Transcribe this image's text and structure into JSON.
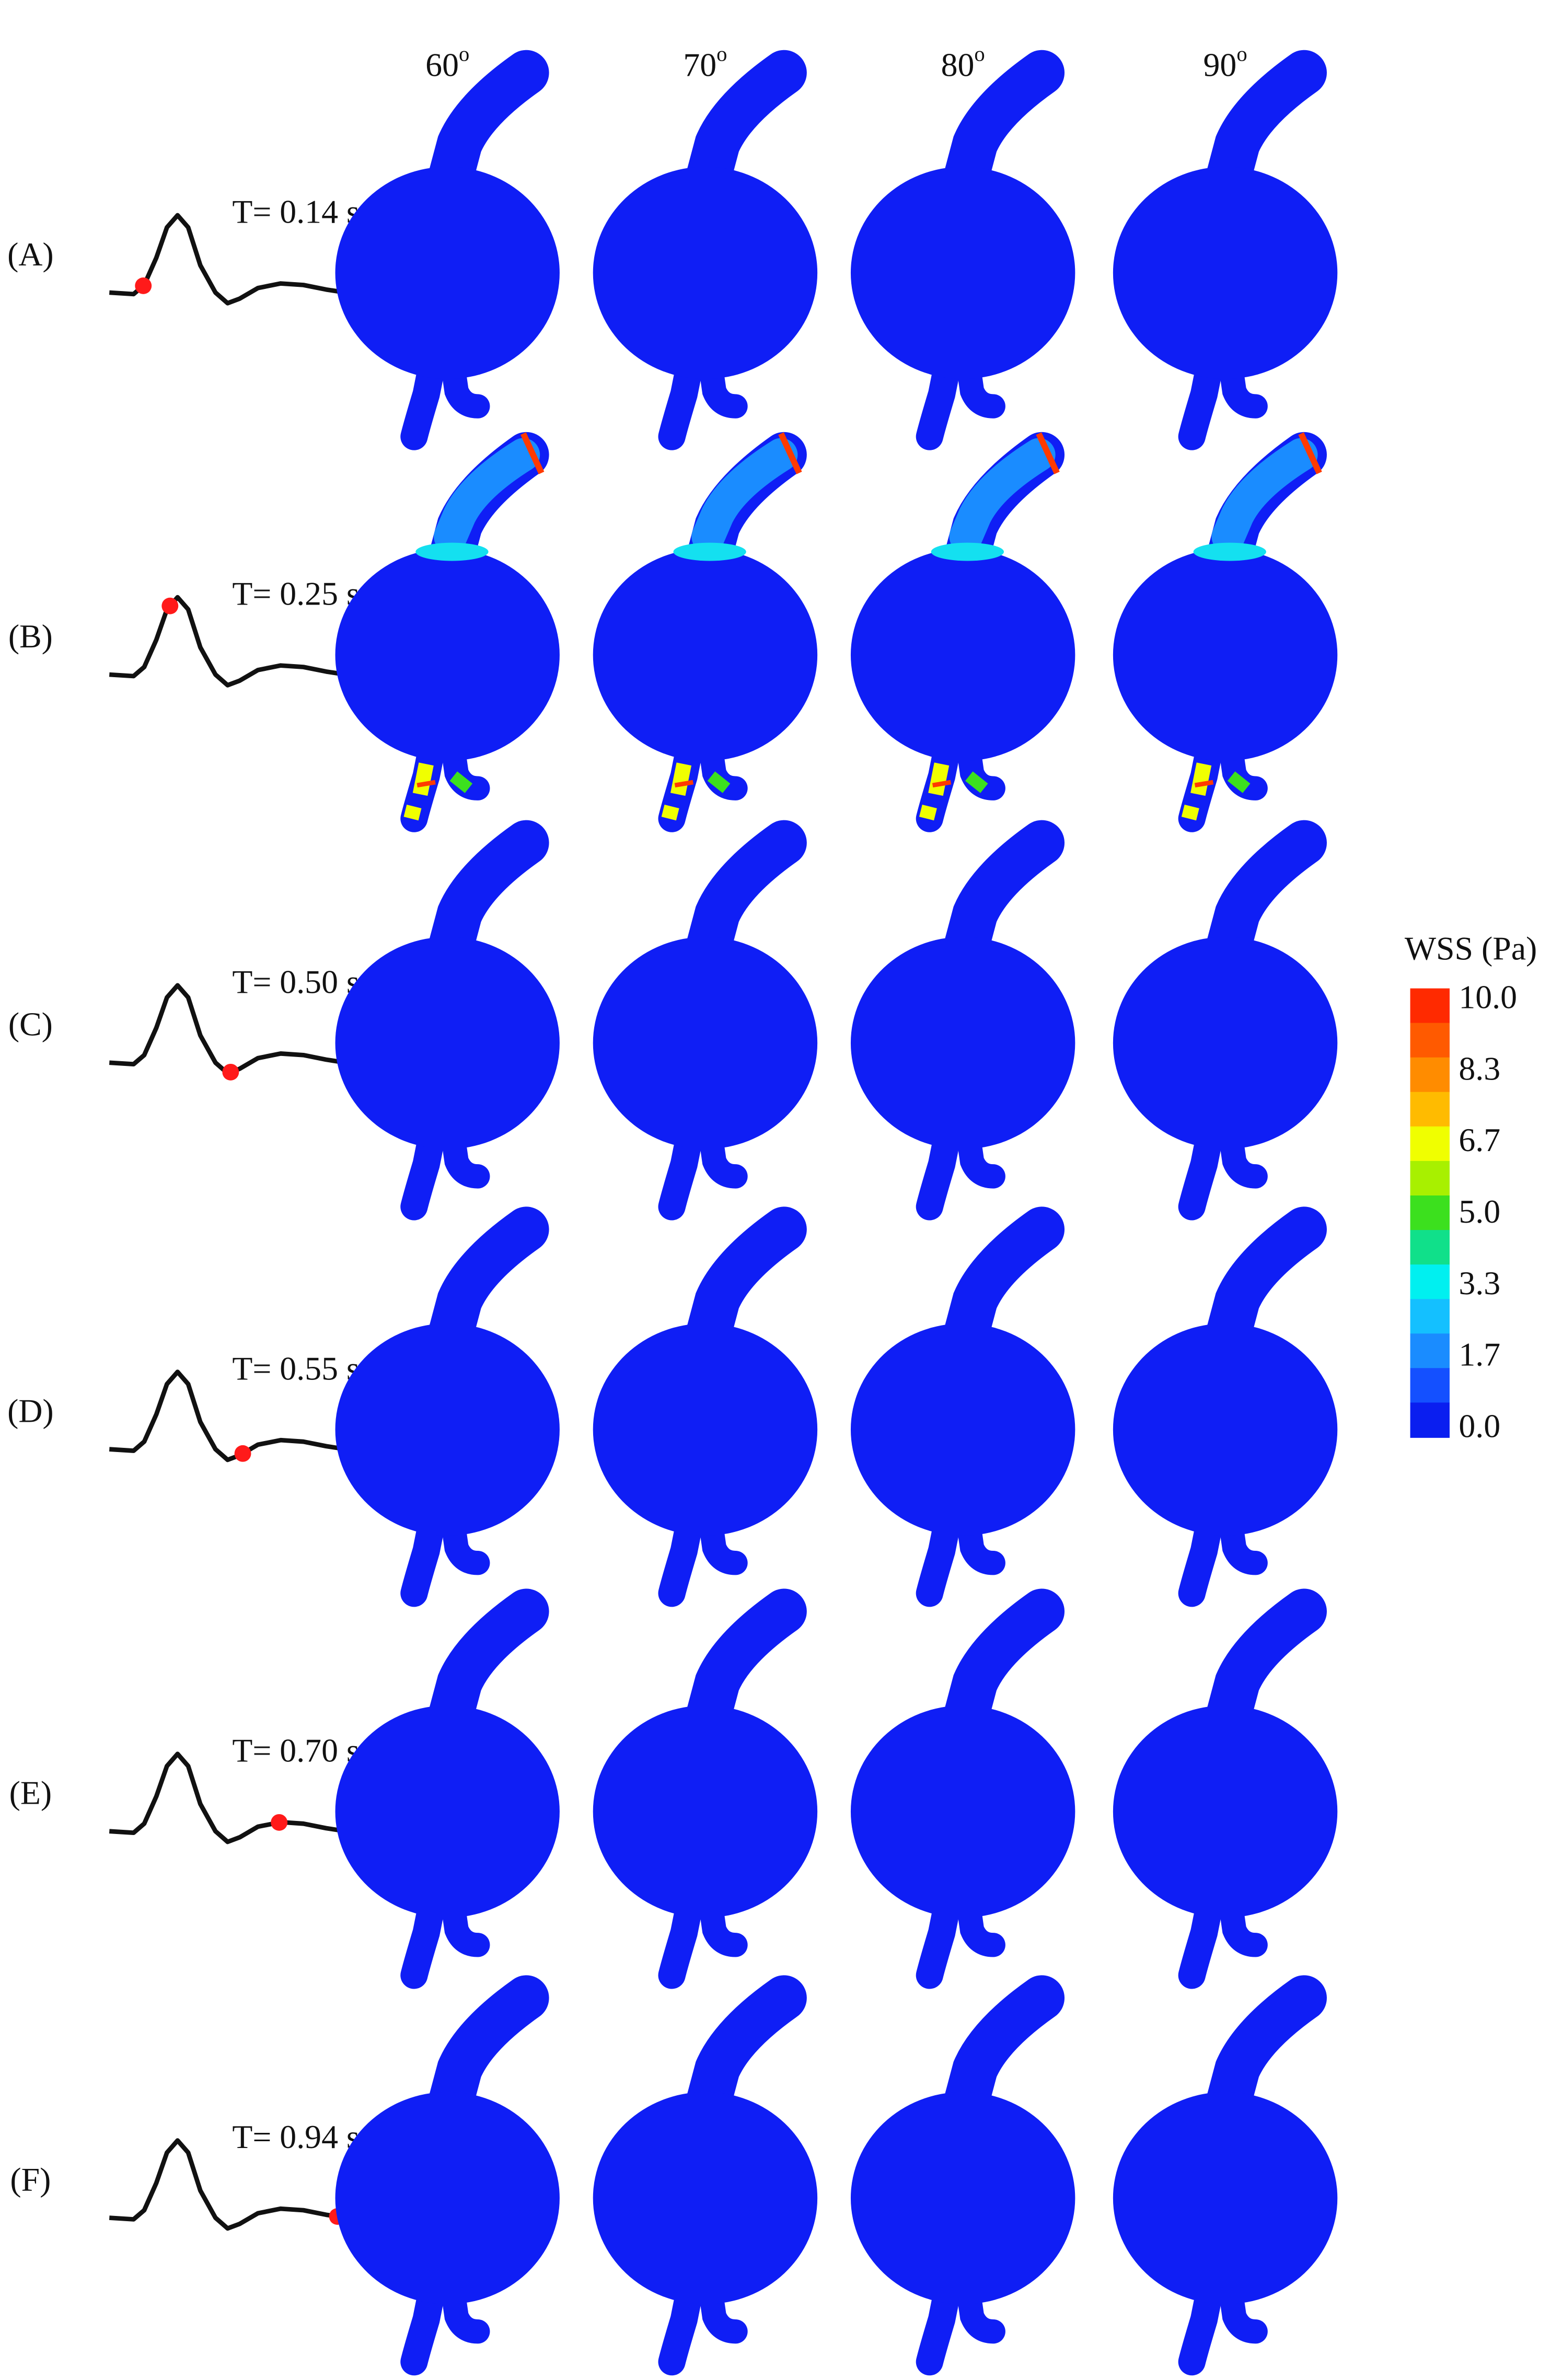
{
  "columns": [
    {
      "label": "60",
      "superscript": "o"
    },
    {
      "label": "70",
      "superscript": "o"
    },
    {
      "label": "80",
      "superscript": "o"
    },
    {
      "label": "90",
      "superscript": "o"
    }
  ],
  "rows": [
    {
      "label": "(A)",
      "time_label": "T= 0.14 s",
      "time": 0.14
    },
    {
      "label": "(B)",
      "time_label": "T= 0.25 s",
      "time": 0.25
    },
    {
      "label": "(C)",
      "time_label": "T= 0.50 s",
      "time": 0.5
    },
    {
      "label": "(D)",
      "time_label": "T= 0.55 s",
      "time": 0.55
    },
    {
      "label": "(E)",
      "time_label": "T= 0.70 s",
      "time": 0.7
    },
    {
      "label": "(F)",
      "time_label": "T= 0.94 s",
      "time": 0.94
    }
  ],
  "colorbar": {
    "title": "WSS (Pa)",
    "ticks": [
      "10.0",
      "8.3",
      "6.7",
      "5.0",
      "3.3",
      "1.7",
      "0.0"
    ],
    "colors": [
      "#ff2a00",
      "#ff5a00",
      "#ff8c00",
      "#ffbb00",
      "#f0ff00",
      "#a8f000",
      "#3ce01e",
      "#10e08a",
      "#00f0f0",
      "#14c0ff",
      "#1a8cff",
      "#1450ff",
      "#0a1ef0"
    ]
  }
}
